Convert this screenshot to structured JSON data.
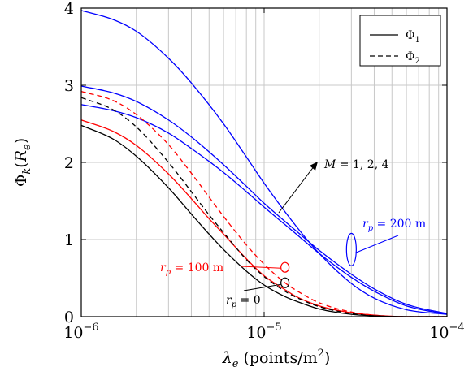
{
  "chart_data": {
    "type": "line",
    "xscale": "log",
    "xlim": [
      1e-06,
      0.0001
    ],
    "ylim": [
      0,
      4
    ],
    "grid": true,
    "legend_position": "top-right",
    "xlabel": "λe (points/m²)",
    "ylabel": "Φk(Re)",
    "xticks": [
      {
        "value": 1e-06,
        "label": "10−6"
      },
      {
        "value": 1e-05,
        "label": "10−5"
      },
      {
        "value": 0.0001,
        "label": "10−4"
      }
    ],
    "yticks": [
      {
        "value": 0,
        "label": "0"
      },
      {
        "value": 1,
        "label": "1"
      },
      {
        "value": 2,
        "label": "2"
      },
      {
        "value": 3,
        "label": "3"
      },
      {
        "value": 4,
        "label": "4"
      }
    ],
    "legend": [
      {
        "label": "Φ1",
        "style": "solid"
      },
      {
        "label": "Φ2",
        "style": "dashed"
      }
    ],
    "series": [
      {
        "color": "#0000ff",
        "style": "solid",
        "points": [
          [
            1e-06,
            3.97
          ],
          [
            1.5e-06,
            3.85
          ],
          [
            2e-06,
            3.7
          ],
          [
            3e-06,
            3.35
          ],
          [
            4e-06,
            3.03
          ],
          [
            6e-06,
            2.5
          ],
          [
            8e-06,
            2.07
          ],
          [
            1e-05,
            1.73
          ],
          [
            1.5e-05,
            1.17
          ],
          [
            2e-05,
            0.82
          ],
          [
            3e-05,
            0.43
          ],
          [
            4e-05,
            0.24
          ],
          [
            6e-05,
            0.09
          ],
          [
            0.0001,
            0.03
          ]
        ]
      },
      {
        "color": "#0000ff",
        "style": "solid",
        "points": [
          [
            1e-06,
            2.99
          ],
          [
            1.5e-06,
            2.9
          ],
          [
            2e-06,
            2.79
          ],
          [
            3e-06,
            2.55
          ],
          [
            4e-06,
            2.33
          ],
          [
            6e-06,
            1.97
          ],
          [
            8e-06,
            1.69
          ],
          [
            1e-05,
            1.47
          ],
          [
            1.5e-05,
            1.11
          ],
          [
            2e-05,
            0.86
          ],
          [
            3e-05,
            0.55
          ],
          [
            4e-05,
            0.36
          ],
          [
            6e-05,
            0.16
          ],
          [
            0.0001,
            0.04
          ]
        ]
      },
      {
        "color": "#0000ff",
        "style": "solid",
        "points": [
          [
            1e-06,
            2.75
          ],
          [
            1.5e-06,
            2.67
          ],
          [
            2e-06,
            2.58
          ],
          [
            3e-06,
            2.38
          ],
          [
            4e-06,
            2.18
          ],
          [
            6e-06,
            1.87
          ],
          [
            8e-06,
            1.62
          ],
          [
            1e-05,
            1.42
          ],
          [
            1.5e-05,
            1.07
          ],
          [
            2e-05,
            0.82
          ],
          [
            3e-05,
            0.51
          ],
          [
            4e-05,
            0.33
          ],
          [
            6e-05,
            0.14
          ],
          [
            0.0001,
            0.03
          ]
        ]
      },
      {
        "color": "#ff0000",
        "style": "solid",
        "points": [
          [
            1e-06,
            2.55
          ],
          [
            1.5e-06,
            2.4
          ],
          [
            2e-06,
            2.22
          ],
          [
            3e-06,
            1.85
          ],
          [
            4e-06,
            1.53
          ],
          [
            5e-06,
            1.27
          ],
          [
            6e-06,
            1.07
          ],
          [
            8e-06,
            0.75
          ],
          [
            1e-05,
            0.53
          ],
          [
            1.3e-05,
            0.35
          ],
          [
            1.5e-05,
            0.26
          ],
          [
            2e-05,
            0.14
          ],
          [
            3e-05,
            0.05
          ],
          [
            4e-05,
            0.02
          ],
          [
            6e-05,
            0.0
          ],
          [
            0.0001,
            0.0
          ]
        ]
      },
      {
        "color": "#ff0000",
        "style": "dashed",
        "points": [
          [
            1e-06,
            2.92
          ],
          [
            1.5e-06,
            2.8
          ],
          [
            2e-06,
            2.62
          ],
          [
            3e-06,
            2.23
          ],
          [
            4e-06,
            1.86
          ],
          [
            5e-06,
            1.55
          ],
          [
            6e-06,
            1.3
          ],
          [
            8e-06,
            0.93
          ],
          [
            1e-05,
            0.68
          ],
          [
            1.3e-05,
            0.44
          ],
          [
            1.5e-05,
            0.34
          ],
          [
            2e-05,
            0.18
          ],
          [
            3e-05,
            0.06
          ],
          [
            4e-05,
            0.02
          ],
          [
            6e-05,
            0.0
          ],
          [
            0.0001,
            0.0
          ]
        ]
      },
      {
        "color": "#000000",
        "style": "solid",
        "points": [
          [
            1e-06,
            2.48
          ],
          [
            1.5e-06,
            2.3
          ],
          [
            2e-06,
            2.08
          ],
          [
            3e-06,
            1.67
          ],
          [
            4e-06,
            1.33
          ],
          [
            5e-06,
            1.07
          ],
          [
            6e-06,
            0.87
          ],
          [
            8e-06,
            0.59
          ],
          [
            1e-05,
            0.41
          ],
          [
            1.3e-05,
            0.26
          ],
          [
            1.5e-05,
            0.2
          ],
          [
            2e-05,
            0.1
          ],
          [
            3e-05,
            0.03
          ],
          [
            4e-05,
            0.01
          ],
          [
            6e-05,
            0.0
          ],
          [
            0.0001,
            0.0
          ]
        ]
      },
      {
        "color": "#000000",
        "style": "dashed",
        "points": [
          [
            1e-06,
            2.84
          ],
          [
            1.5e-06,
            2.68
          ],
          [
            2e-06,
            2.46
          ],
          [
            3e-06,
            2.0
          ],
          [
            4e-06,
            1.62
          ],
          [
            5e-06,
            1.32
          ],
          [
            6e-06,
            1.09
          ],
          [
            8e-06,
            0.74
          ],
          [
            1e-05,
            0.52
          ],
          [
            1.3e-05,
            0.33
          ],
          [
            1.5e-05,
            0.25
          ],
          [
            2e-05,
            0.13
          ],
          [
            3e-05,
            0.04
          ],
          [
            4e-05,
            0.01
          ],
          [
            6e-05,
            0.0
          ],
          [
            0.0001,
            0.0
          ]
        ]
      }
    ],
    "annotations": [
      {
        "id": "m",
        "text": "M = 1, 2, 4",
        "color": "#000000"
      },
      {
        "id": "r200",
        "text": "rp = 200 m",
        "color": "#0000ff"
      },
      {
        "id": "r100",
        "text": "rp = 100 m",
        "color": "#ff0000"
      },
      {
        "id": "r0",
        "text": "rp = 0",
        "color": "#000000"
      }
    ],
    "ellipses": [
      {
        "id": "e200",
        "x": 3e-05,
        "y": 0.87,
        "rx_px": 6,
        "ry_px": 20,
        "color": "#0000ff"
      },
      {
        "id": "e100",
        "x": 1.3e-05,
        "y": 0.64,
        "rx_px": 5,
        "ry_px": 6,
        "color": "#ff0000"
      },
      {
        "id": "e0",
        "x": 1.3e-05,
        "y": 0.44,
        "rx_px": 5,
        "ry_px": 6,
        "color": "#000000"
      }
    ]
  }
}
